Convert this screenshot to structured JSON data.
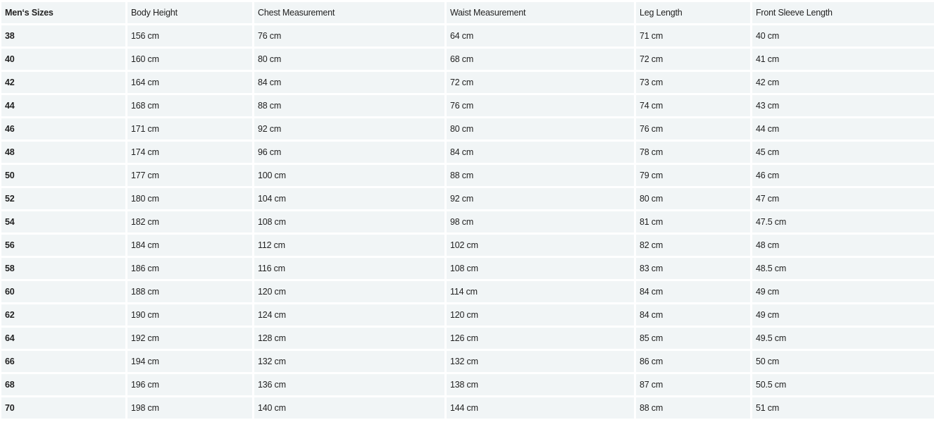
{
  "table": {
    "headers": [
      "Men‘s Sizes",
      "Body Height",
      "Chest Measurement",
      "Waist Measurement",
      "Leg Length",
      "Front Sleeve Length"
    ],
    "rows": [
      [
        "38",
        "156 cm",
        "76 cm",
        "64 cm",
        "71 cm",
        "40 cm"
      ],
      [
        "40",
        "160 cm",
        "80 cm",
        "68 cm",
        "72 cm",
        "41 cm"
      ],
      [
        "42",
        "164 cm",
        "84 cm",
        "72 cm",
        "73 cm",
        "42 cm"
      ],
      [
        "44",
        "168 cm",
        "88 cm",
        "76 cm",
        "74 cm",
        "43 cm"
      ],
      [
        "46",
        "171 cm",
        "92 cm",
        "80 cm",
        "76 cm",
        "44 cm"
      ],
      [
        "48",
        "174 cm",
        "96 cm",
        "84 cm",
        "78 cm",
        "45 cm"
      ],
      [
        "50",
        "177 cm",
        "100 cm",
        "88 cm",
        "79 cm",
        "46 cm"
      ],
      [
        "52",
        "180 cm",
        "104 cm",
        "92 cm",
        "80 cm",
        "47 cm"
      ],
      [
        "54",
        "182 cm",
        "108 cm",
        "98 cm",
        "81 cm",
        "47.5 cm"
      ],
      [
        "56",
        "184 cm",
        "112 cm",
        "102 cm",
        "82 cm",
        "48 cm"
      ],
      [
        "58",
        "186 cm",
        "116 cm",
        "108 cm",
        "83 cm",
        "48.5 cm"
      ],
      [
        "60",
        "188 cm",
        "120 cm",
        "114 cm",
        "84 cm",
        "49 cm"
      ],
      [
        "62",
        "190 cm",
        "124 cm",
        "120 cm",
        "84 cm",
        "49 cm"
      ],
      [
        "64",
        "192 cm",
        "128 cm",
        "126 cm",
        "85 cm",
        "49.5 cm"
      ],
      [
        "66",
        "194 cm",
        "132 cm",
        "132 cm",
        "86 cm",
        "50 cm"
      ],
      [
        "68",
        "196 cm",
        "136 cm",
        "138 cm",
        "87 cm",
        "50.5 cm"
      ],
      [
        "70",
        "198 cm",
        "140 cm",
        "144 cm",
        "88 cm",
        "51 cm"
      ]
    ]
  },
  "colors": {
    "cell_background": "#f1f5f6",
    "text": "#222222"
  }
}
